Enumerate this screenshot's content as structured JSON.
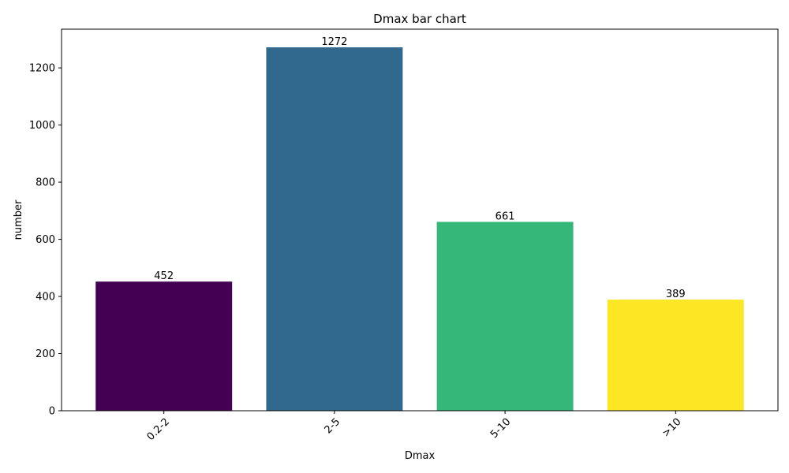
{
  "chart_data": {
    "type": "bar",
    "title": "Dmax bar chart",
    "xlabel": "Dmax",
    "ylabel": "number",
    "categories": [
      "0.2-2",
      "2-5",
      "5-10",
      ">10"
    ],
    "values": [
      452,
      1272,
      661,
      389
    ],
    "colors": [
      "#440154",
      "#31688e",
      "#35b779",
      "#fde725"
    ],
    "ylim": [
      0,
      1335.6
    ],
    "yticks": [
      0,
      200,
      400,
      600,
      800,
      1000,
      1200
    ],
    "grid": false,
    "legend": "none",
    "data_labels": true,
    "xtick_rotation_deg": 45
  }
}
